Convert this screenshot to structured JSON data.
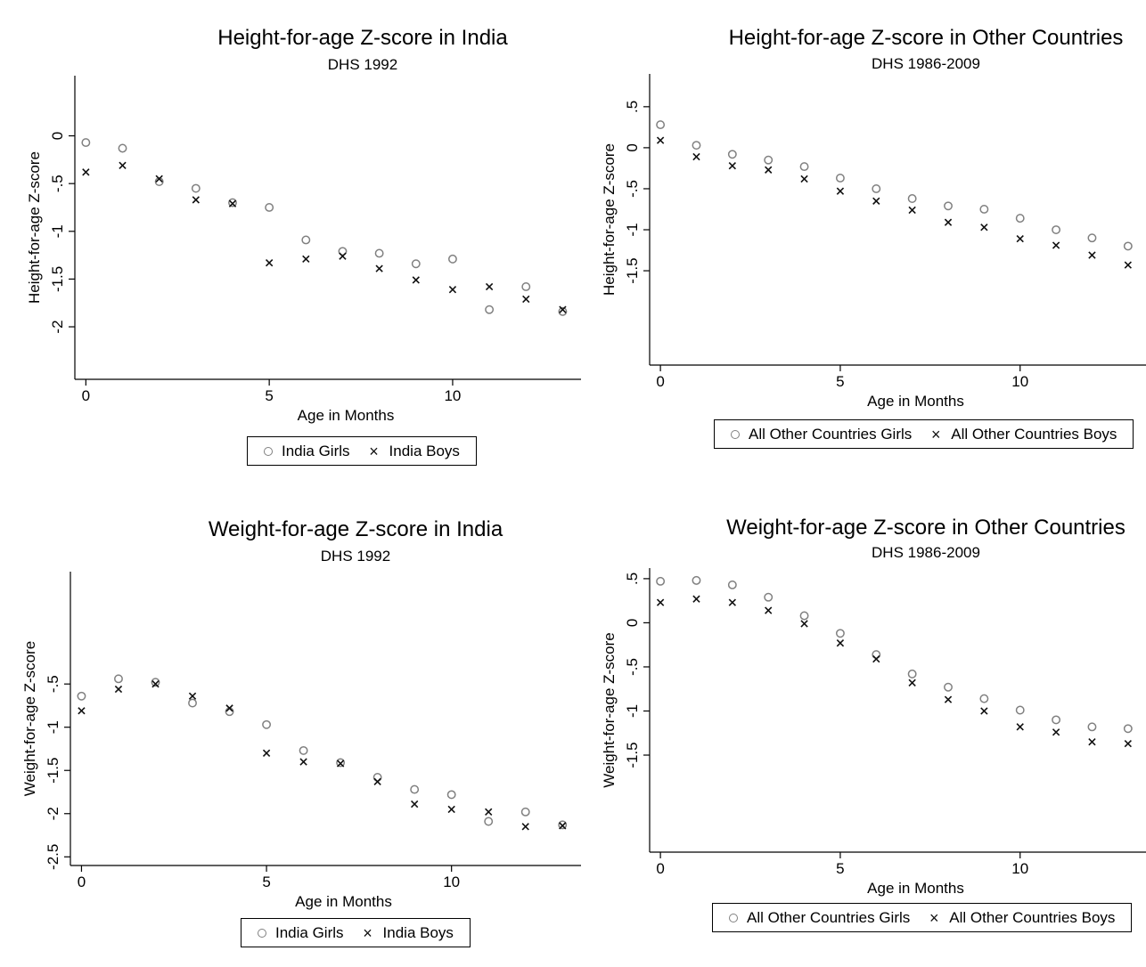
{
  "chart_data": [
    {
      "type": "scatter",
      "title": "Height-for-age Z-score in India",
      "subtitle": "DHS 1992",
      "xlabel": "Age in Months",
      "ylabel": "Height-for-age Z-score",
      "xlim": [
        -0.3,
        13.5
      ],
      "ylim": [
        -2.55,
        0.63
      ],
      "xticks": [
        0,
        5,
        10
      ],
      "xtick_labels": [
        "0",
        "5",
        "10"
      ],
      "yticks": [
        0,
        -0.5,
        -1,
        -1.5,
        -2
      ],
      "ytick_labels": [
        "0",
        "-.5",
        "-1",
        "-1.5",
        "-2"
      ],
      "grid": false,
      "legend": "bottom",
      "x": [
        0,
        1,
        2,
        3,
        4,
        5,
        6,
        7,
        8,
        9,
        10,
        11,
        12,
        13
      ],
      "series": [
        {
          "name": "India Girls",
          "marker": "circle",
          "values": [
            -0.07,
            -0.13,
            -0.48,
            -0.55,
            -0.7,
            -0.75,
            -1.09,
            -1.21,
            -1.23,
            -1.34,
            -1.29,
            -1.82,
            -1.58,
            -1.84
          ]
        },
        {
          "name": "India Boys",
          "marker": "x",
          "values": [
            -0.38,
            -0.31,
            -0.45,
            -0.67,
            -0.71,
            -1.33,
            -1.29,
            -1.26,
            -1.39,
            -1.51,
            -1.61,
            -1.58,
            -1.71,
            -1.82
          ]
        }
      ]
    },
    {
      "type": "scatter",
      "title": "Height-for-age Z-score in Other Countries",
      "subtitle": "DHS 1986-2009",
      "xlabel": "Age in Months",
      "ylabel": "Height-for-age Z-score",
      "xlim": [
        -0.3,
        13.5
      ],
      "ylim": [
        -2.65,
        0.9
      ],
      "xticks": [
        0,
        5,
        10
      ],
      "xtick_labels": [
        "0",
        "5",
        "10"
      ],
      "yticks": [
        0.5,
        0,
        -0.5,
        -1,
        -1.5
      ],
      "ytick_labels": [
        ".5",
        "0",
        "-.5",
        "-1",
        "-1.5"
      ],
      "grid": false,
      "legend": "bottom",
      "x": [
        0,
        1,
        2,
        3,
        4,
        5,
        6,
        7,
        8,
        9,
        10,
        11,
        12,
        13
      ],
      "series": [
        {
          "name": "All Other Countries Girls",
          "marker": "circle",
          "values": [
            0.28,
            0.03,
            -0.08,
            -0.15,
            -0.23,
            -0.37,
            -0.5,
            -0.62,
            -0.71,
            -0.75,
            -0.86,
            -1.0,
            -1.1,
            -1.2
          ]
        },
        {
          "name": "All Other Countries Boys",
          "marker": "x",
          "values": [
            0.09,
            -0.11,
            -0.22,
            -0.27,
            -0.38,
            -0.53,
            -0.65,
            -0.76,
            -0.91,
            -0.97,
            -1.11,
            -1.19,
            -1.31,
            -1.43
          ]
        }
      ]
    },
    {
      "type": "scatter",
      "title": "Weight-for-age Z-score in India",
      "subtitle": "DHS 1992",
      "xlabel": "Age in Months",
      "ylabel": "Weight-for-age Z-score",
      "xlim": [
        -0.3,
        13.5
      ],
      "ylim": [
        -2.6,
        0.8
      ],
      "xticks": [
        0,
        5,
        10
      ],
      "xtick_labels": [
        "0",
        "5",
        "10"
      ],
      "yticks": [
        -0.5,
        -1,
        -1.5,
        -2,
        -2.5
      ],
      "ytick_labels": [
        "-.5",
        "-1",
        "-1.5",
        "-2",
        "-2.5"
      ],
      "grid": false,
      "legend": "bottom",
      "x": [
        0,
        1,
        2,
        3,
        4,
        5,
        6,
        7,
        8,
        9,
        10,
        11,
        12,
        13
      ],
      "series": [
        {
          "name": "India Girls",
          "marker": "circle",
          "values": [
            -0.64,
            -0.44,
            -0.48,
            -0.72,
            -0.82,
            -0.97,
            -1.27,
            -1.41,
            -1.58,
            -1.72,
            -1.78,
            -2.09,
            -1.98,
            -2.13
          ]
        },
        {
          "name": "India Boys",
          "marker": "x",
          "values": [
            -0.81,
            -0.56,
            -0.5,
            -0.64,
            -0.78,
            -1.3,
            -1.4,
            -1.42,
            -1.63,
            -1.89,
            -1.95,
            -1.98,
            -2.15,
            -2.14
          ]
        }
      ]
    },
    {
      "type": "scatter",
      "title": "Weight-for-age Z-score in Other Countries",
      "subtitle": "DHS 1986-2009",
      "xlabel": "Age in Months",
      "ylabel": "Weight-for-age Z-score",
      "xlim": [
        -0.3,
        13.5
      ],
      "ylim": [
        -2.6,
        0.62
      ],
      "xticks": [
        0,
        5,
        10
      ],
      "xtick_labels": [
        "0",
        "5",
        "10"
      ],
      "yticks": [
        0.5,
        0,
        -0.5,
        -1,
        -1.5
      ],
      "ytick_labels": [
        ".5",
        "0",
        "-.5",
        "-1",
        "-1.5"
      ],
      "grid": false,
      "legend": "bottom",
      "x": [
        0,
        1,
        2,
        3,
        4,
        5,
        6,
        7,
        8,
        9,
        10,
        11,
        12,
        13
      ],
      "series": [
        {
          "name": "All Other Countries Girls",
          "marker": "circle",
          "values": [
            0.47,
            0.48,
            0.43,
            0.29,
            0.08,
            -0.12,
            -0.36,
            -0.58,
            -0.73,
            -0.86,
            -0.99,
            -1.1,
            -1.18,
            -1.2
          ]
        },
        {
          "name": "All Other Countries Boys",
          "marker": "x",
          "values": [
            0.23,
            0.27,
            0.23,
            0.14,
            -0.01,
            -0.23,
            -0.41,
            -0.68,
            -0.87,
            -1.0,
            -1.18,
            -1.24,
            -1.35,
            -1.37
          ]
        }
      ]
    }
  ]
}
